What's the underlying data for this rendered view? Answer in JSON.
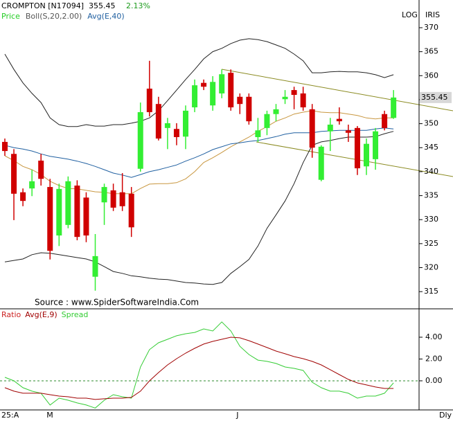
{
  "toolbar": [
    "LOG",
    "IRIS"
  ],
  "periodicity": "Dly",
  "source": "Source : www.SpiderSoftwareIndia.Com",
  "chart_data": [
    {
      "type": "candlestick",
      "title": "CROMPTON [N17094]",
      "last_price": 355.45,
      "change": "2.13%",
      "categories": [
        "25:A",
        null,
        null,
        null,
        null,
        "M",
        null,
        null,
        null,
        null,
        null,
        null,
        null,
        null,
        null,
        null,
        null,
        null,
        null,
        null,
        null,
        null,
        null,
        null,
        null,
        null,
        "J",
        null,
        null,
        null,
        null,
        null,
        null,
        null,
        null,
        null,
        null,
        null,
        null,
        null,
        null,
        null,
        null,
        null
      ],
      "ylim": [
        311.56,
        375.77
      ],
      "yticks": [
        315,
        320,
        325,
        330,
        335,
        340,
        345,
        350,
        355,
        360,
        365,
        370
      ],
      "candles": {
        "name": "Price",
        "color": "#22cc22",
        "up_color": "#33ee33",
        "down_color": "#d00000",
        "open": [
          346.2,
          343.7,
          335.7,
          336.5,
          342.3,
          336.8,
          326.7,
          328.9,
          337.1,
          334.6,
          318.1,
          333.6,
          336.1,
          335.7,
          335.4,
          340.6,
          357.3,
          354.1,
          349.1,
          348.9,
          347.3,
          353.4,
          358.5,
          353.8,
          356.3,
          360.6,
          355.6,
          355.6,
          347.2,
          349.1,
          352.0,
          355.1,
          357.0,
          356.3,
          353.0,
          338.3,
          348.4,
          351.0,
          348.6,
          349.1,
          341.1,
          342.6,
          352.0,
          351.2
        ],
        "high": [
          346.9,
          344.7,
          336.5,
          340.4,
          343.7,
          338.5,
          337.5,
          339.0,
          338.2,
          335.7,
          327.0,
          337.5,
          337.5,
          339.7,
          336.8,
          354.4,
          363.1,
          355.6,
          351.2,
          350.1,
          353.8,
          359.2,
          359.2,
          359.9,
          361.3,
          361.3,
          356.3,
          356.3,
          351.2,
          352.7,
          354.1,
          357.0,
          357.7,
          357.7,
          354.1,
          345.5,
          351.2,
          353.4,
          349.8,
          349.5,
          346.9,
          349.1,
          352.7,
          357.0
        ],
        "low": [
          343.3,
          329.9,
          332.8,
          334.9,
          337.1,
          321.7,
          324.5,
          328.2,
          325.7,
          325.3,
          315.2,
          328.9,
          331.8,
          331.8,
          326.4,
          340.0,
          351.5,
          346.5,
          344.7,
          345.5,
          344.7,
          352.4,
          357.0,
          352.7,
          355.3,
          352.7,
          352.0,
          349.8,
          346.2,
          347.6,
          350.5,
          354.1,
          353.0,
          352.7,
          342.9,
          338.0,
          344.3,
          349.8,
          346.2,
          339.3,
          339.3,
          340.4,
          348.6,
          351.0
        ],
        "close": [
          344.3,
          335.4,
          333.9,
          338.0,
          338.5,
          323.5,
          336.4,
          338.0,
          326.4,
          326.7,
          322.4,
          336.8,
          332.5,
          332.8,
          328.4,
          352.4,
          352.4,
          346.9,
          350.1,
          347.2,
          352.7,
          358.0,
          357.7,
          358.7,
          360.3,
          353.4,
          354.1,
          350.5,
          348.6,
          352.0,
          353.0,
          355.6,
          356.0,
          353.4,
          345.0,
          345.2,
          349.8,
          350.5,
          348.1,
          340.7,
          345.8,
          348.4,
          349.1,
          355.45
        ]
      },
      "overlays": [
        {
          "name": "Boll(S,20,2.00)",
          "color": "#222222",
          "middle_color": "#c8963e",
          "upper": [
            364.5,
            361.3,
            358.5,
            356.3,
            354.4,
            351.2,
            349.8,
            349.4,
            349.4,
            349.8,
            349.5,
            349.5,
            349.8,
            349.8,
            350.1,
            350.5,
            351.2,
            352.7,
            354.8,
            357.0,
            359.2,
            361.3,
            363.5,
            365.0,
            365.7,
            366.7,
            367.4,
            367.7,
            367.5,
            367.1,
            366.4,
            365.7,
            364.5,
            363.1,
            360.6,
            360.6,
            360.8,
            360.9,
            360.8,
            360.8,
            360.6,
            360.2,
            359.6,
            360.2
          ],
          "middle": [
            343.3,
            342.3,
            341.1,
            340.4,
            339.4,
            338.0,
            337.1,
            336.5,
            336.4,
            336.1,
            335.8,
            335.7,
            335.4,
            335.4,
            335.4,
            336.5,
            337.4,
            337.5,
            337.5,
            337.7,
            338.5,
            340.0,
            341.9,
            342.9,
            344.0,
            345.2,
            346.2,
            347.2,
            348.4,
            349.4,
            350.5,
            351.2,
            352.0,
            352.4,
            352.7,
            352.4,
            352.3,
            352.3,
            352.0,
            351.7,
            351.2,
            351.0,
            351.2,
            351.2
          ],
          "lower": [
            321.2,
            321.5,
            321.8,
            322.7,
            323.1,
            323.0,
            322.7,
            322.4,
            322.1,
            321.8,
            321.2,
            320.2,
            319.2,
            318.8,
            318.3,
            318.1,
            317.8,
            317.6,
            317.5,
            317.2,
            316.9,
            316.8,
            316.6,
            316.5,
            316.9,
            318.8,
            320.2,
            321.7,
            324.5,
            328.2,
            331.0,
            333.9,
            337.5,
            341.9,
            345.5,
            346.2,
            346.5,
            346.9,
            347.2,
            347.2,
            347.2,
            347.3,
            347.9,
            348.4
          ]
        },
        {
          "name": "Avg(E,40)",
          "color": "#1f5fa0",
          "values": [
            345.5,
            345.0,
            344.7,
            344.3,
            343.7,
            343.2,
            342.9,
            342.6,
            342.2,
            341.7,
            341.1,
            340.4,
            339.7,
            339.3,
            338.8,
            339.4,
            340.0,
            340.4,
            340.9,
            341.4,
            342.2,
            342.9,
            343.7,
            344.6,
            345.2,
            345.8,
            346.0,
            346.3,
            346.5,
            346.9,
            347.3,
            347.8,
            348.1,
            348.1,
            348.1,
            348.4,
            348.5,
            348.6,
            348.6,
            348.6,
            348.6,
            348.9,
            349.1,
            348.9
          ]
        }
      ]
    },
    {
      "type": "line",
      "title": "Ratio",
      "title_color": "#cc2222",
      "ylim": [
        -2.67,
        6.54
      ],
      "yticks": [
        {
          "value": 4,
          "label": "4.00"
        },
        {
          "value": 2,
          "label": "2.00"
        },
        {
          "value": 0,
          "label": "0.00"
        }
      ],
      "zero_line_color": "#2a8a2a",
      "series": [
        {
          "name": "Avg(E,9)",
          "color": "#a00000",
          "values": [
            -0.63,
            -0.95,
            -1.14,
            -1.14,
            -1.14,
            -1.27,
            -1.4,
            -1.46,
            -1.59,
            -1.59,
            -1.71,
            -1.65,
            -1.59,
            -1.59,
            -1.52,
            -0.95,
            0,
            0.76,
            1.46,
            2.03,
            2.54,
            2.98,
            3.37,
            3.62,
            3.81,
            4.0,
            3.94,
            3.68,
            3.37,
            3.05,
            2.73,
            2.48,
            2.22,
            2.03,
            1.78,
            1.46,
            1.02,
            0.57,
            0.13,
            -0.19,
            -0.38,
            -0.57,
            -0.7,
            -0.7
          ]
        },
        {
          "name": "Spread",
          "color": "#33cc33",
          "values": [
            0.32,
            0,
            -0.63,
            -0.95,
            -1.14,
            -2.22,
            -1.59,
            -1.78,
            -2.03,
            -2.22,
            -2.5,
            -1.78,
            -1.27,
            -1.46,
            -1.59,
            1.27,
            2.86,
            3.49,
            3.81,
            4.13,
            4.32,
            4.44,
            4.76,
            4.57,
            5.4,
            4.57,
            3.17,
            2.41,
            1.9,
            1.78,
            1.59,
            1.27,
            1.14,
            0.95,
            -0.13,
            -0.63,
            -0.95,
            -0.95,
            -1.14,
            -1.59,
            -1.4,
            -1.4,
            -1.14,
            -0.19
          ]
        }
      ]
    }
  ]
}
